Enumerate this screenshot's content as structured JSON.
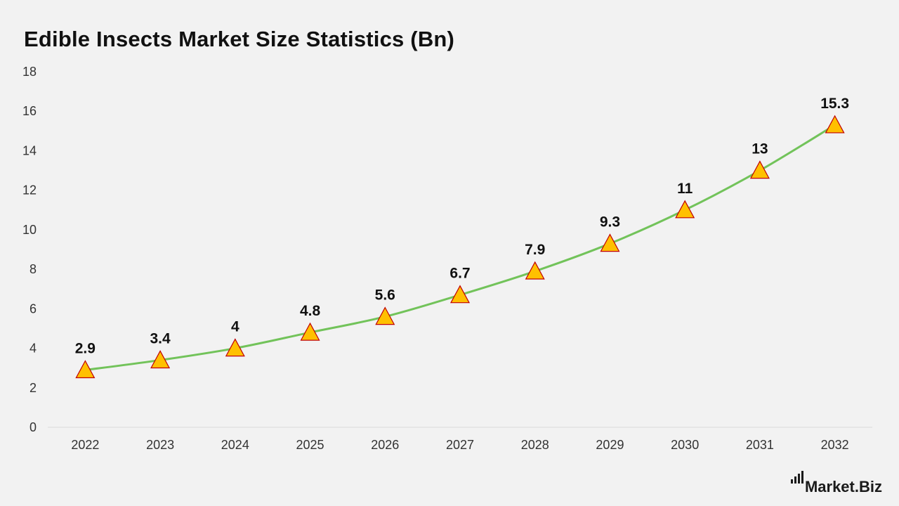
{
  "chart_data": {
    "type": "line",
    "title": "Edible Insects Market Size Statistics (Bn)",
    "categories": [
      "2022",
      "2023",
      "2024",
      "2025",
      "2026",
      "2027",
      "2028",
      "2029",
      "2030",
      "2031",
      "2032"
    ],
    "series": [
      {
        "values": [
          2.9,
          3.4,
          4,
          4.8,
          5.6,
          6.7,
          7.9,
          9.3,
          11,
          13,
          15.3
        ]
      }
    ],
    "data_labels": [
      "2.9",
      "3.4",
      "4",
      "4.8",
      "5.6",
      "6.7",
      "7.9",
      "9.3",
      "11",
      "13",
      "15.3"
    ],
    "ylim": [
      0,
      18
    ],
    "yticks": [
      0,
      2,
      4,
      6,
      8,
      10,
      12,
      14,
      16,
      18
    ],
    "xlabel": "",
    "ylabel": "",
    "grid": false,
    "legend": "none",
    "line_color": "#72c35a",
    "marker": "triangle",
    "marker_fill": "#ffc000",
    "marker_stroke": "#c00000"
  },
  "branding": {
    "logo_text": "Market.Biz"
  }
}
